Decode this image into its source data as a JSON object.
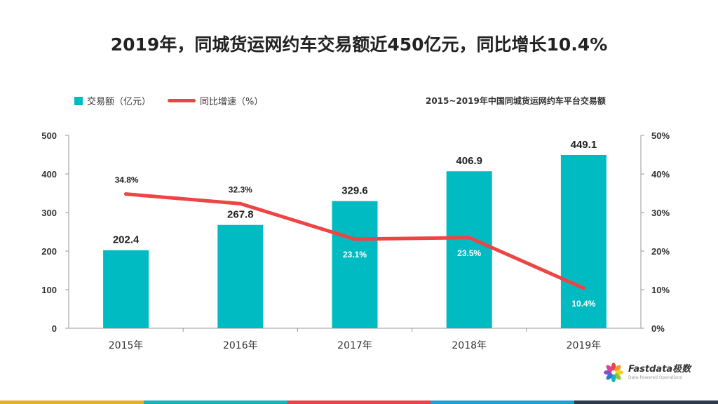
{
  "title": "2019年，同城货运网约车交易额近450亿元，同比增长10.4%",
  "subtitle": "2015~2019年中国同城货运网约车平台交易额",
  "legend": {
    "bar_label": "交易额（亿元）",
    "line_label": "同比增速（%）"
  },
  "colors": {
    "bar": "#00bcc2",
    "line": "#ee4444",
    "strip": [
      "#e3b02c",
      "#19b3b8",
      "#e8424a",
      "#1fa0d0",
      "#2d3a4e"
    ]
  },
  "logo": {
    "name": "Fastdata极数",
    "tagline": "Data-Powered Operations"
  },
  "chart_data": {
    "type": "bar",
    "categories": [
      "2015年",
      "2016年",
      "2017年",
      "2018年",
      "2019年"
    ],
    "series": [
      {
        "name": "交易额（亿元）",
        "type": "bar",
        "axis": "left",
        "values": [
          202.4,
          267.8,
          329.6,
          406.9,
          449.1
        ],
        "labels": [
          "202.4",
          "267.8",
          "329.6",
          "406.9",
          "449.1"
        ]
      },
      {
        "name": "同比增速（%）",
        "type": "line",
        "axis": "right",
        "values": [
          34.8,
          32.3,
          23.1,
          23.5,
          10.4
        ],
        "labels": [
          "34.8%",
          "32.3%",
          "23.1%",
          "23.5%",
          "10.4%"
        ]
      }
    ],
    "y_left": {
      "ylim": [
        0,
        500
      ],
      "ticks": [
        "0",
        "100",
        "200",
        "300",
        "400",
        "500"
      ]
    },
    "y_right": {
      "ylim": [
        0,
        50
      ],
      "ticks": [
        "0%",
        "10%",
        "20%",
        "30%",
        "40%",
        "50%"
      ]
    },
    "grid": false,
    "legend_position": "top-left"
  }
}
